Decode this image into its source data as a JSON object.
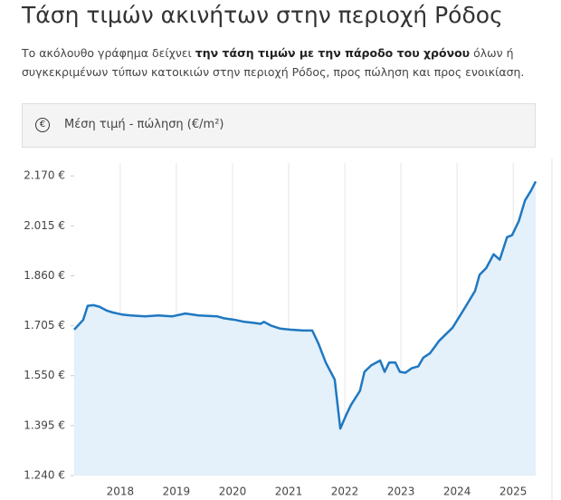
{
  "header": {
    "title": "Τάση τιμών ακινήτων στην περιοχή Ρόδος",
    "intro": [
      "Το ακόλουθο γράφημα δείχνει ",
      "την τάση τιμών με την πάροδο του χρόνου",
      " όλων ή συγκεκριμένων τύπων κατοικιών στην περιοχή Ρόδος, προς πώληση και προς ενοικίαση."
    ]
  },
  "panel": {
    "icon": "€",
    "label": "Μέση τιμή - πώληση (€/m²)"
  },
  "chart_data": {
    "type": "area",
    "x": [
      2017.18,
      2017.34,
      2017.42,
      2017.52,
      2017.63,
      2017.76,
      2017.87,
      2018.03,
      2018.19,
      2018.44,
      2018.68,
      2018.92,
      2019.16,
      2019.4,
      2019.73,
      2019.85,
      2020.05,
      2020.21,
      2020.37,
      2020.5,
      2020.56,
      2020.69,
      2020.85,
      2021.02,
      2021.26,
      2021.42,
      2021.53,
      2021.66,
      2021.82,
      2021.92,
      2022.03,
      2022.11,
      2022.27,
      2022.35,
      2022.47,
      2022.63,
      2022.71,
      2022.79,
      2022.9,
      2022.98,
      2023.08,
      2023.19,
      2023.31,
      2023.4,
      2023.52,
      2023.68,
      2023.92,
      2024.16,
      2024.32,
      2024.4,
      2024.52,
      2024.65,
      2024.76,
      2024.89,
      2024.98,
      2025.1,
      2025.21,
      2025.32,
      2025.4
    ],
    "values": [
      1693,
      1723,
      1767,
      1769,
      1764,
      1752,
      1746,
      1740,
      1737,
      1734,
      1737,
      1734,
      1743,
      1737,
      1734,
      1728,
      1723,
      1717,
      1714,
      1711,
      1717,
      1705,
      1696,
      1693,
      1690,
      1690,
      1650,
      1591,
      1538,
      1386,
      1430,
      1459,
      1503,
      1562,
      1582,
      1597,
      1562,
      1591,
      1591,
      1562,
      1559,
      1573,
      1579,
      1606,
      1620,
      1658,
      1699,
      1767,
      1813,
      1863,
      1884,
      1927,
      1910,
      1980,
      1986,
      2030,
      2094,
      2125,
      2153
    ],
    "color": "#1f78c1",
    "fill": "#e4f0fa",
    "xlim": [
      2017.18,
      2025.4
    ],
    "xticks": [
      2018,
      2019,
      2020,
      2021,
      2022,
      2023,
      2024,
      2025
    ],
    "ylim": [
      1240,
      2210
    ],
    "yticks": [
      {
        "value": 1240,
        "label": "1.240 €"
      },
      {
        "value": 1395,
        "label": "1.395 €"
      },
      {
        "value": 1550,
        "label": "1.550 €"
      },
      {
        "value": 1705,
        "label": "1.705 €"
      },
      {
        "value": 1860,
        "label": "1.860 €"
      },
      {
        "value": 2015,
        "label": "2.015 €"
      },
      {
        "value": 2170,
        "label": "2.170 €"
      }
    ],
    "grid": "x"
  }
}
